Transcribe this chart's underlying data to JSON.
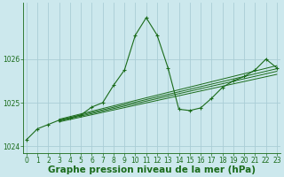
{
  "background_color": "#cce8ed",
  "grid_color": "#aacdd6",
  "line_color": "#1a6b1a",
  "marker_color": "#1a6b1a",
  "x_values": [
    0,
    1,
    2,
    3,
    4,
    5,
    6,
    7,
    8,
    9,
    10,
    11,
    12,
    13,
    14,
    15,
    16,
    17,
    18,
    19,
    20,
    21,
    22,
    23
  ],
  "series1": [
    1024.15,
    1024.4,
    1024.5,
    1024.6,
    1024.65,
    1024.72,
    1024.9,
    1025.0,
    1025.4,
    1025.75,
    1026.55,
    1026.95,
    1026.55,
    1025.8,
    1024.85,
    1024.82,
    1024.88,
    1025.1,
    1025.35,
    1025.5,
    1025.6,
    1025.75,
    1026.0,
    1025.8
  ],
  "trend_lines": [
    {
      "x": [
        3,
        23
      ],
      "y": [
        1024.62,
        1025.85
      ]
    },
    {
      "x": [
        3,
        23
      ],
      "y": [
        1024.6,
        1025.78
      ]
    },
    {
      "x": [
        3,
        23
      ],
      "y": [
        1024.58,
        1025.72
      ]
    },
    {
      "x": [
        3,
        23
      ],
      "y": [
        1024.56,
        1025.65
      ]
    }
  ],
  "ylim": [
    1023.85,
    1027.3
  ],
  "yticks": [
    1024,
    1025,
    1026
  ],
  "xlim": [
    -0.3,
    23.3
  ],
  "xticks": [
    0,
    1,
    2,
    3,
    4,
    5,
    6,
    7,
    8,
    9,
    10,
    11,
    12,
    13,
    14,
    15,
    16,
    17,
    18,
    19,
    20,
    21,
    22,
    23
  ],
  "xlabel": "Graphe pression niveau de la mer (hPa)",
  "tick_fontsize": 5.5,
  "xlabel_fontsize": 7.5
}
